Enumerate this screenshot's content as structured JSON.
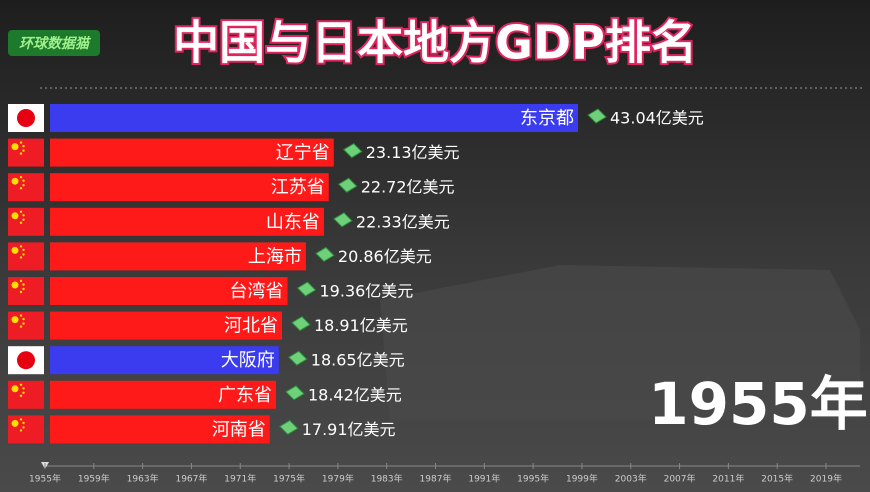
{
  "chart_data": {
    "type": "bar",
    "orientation": "horizontal",
    "title": "中国与日本地方GDP排名",
    "logo": "环球数据猫",
    "year_label": "1955年",
    "categories": [
      "东京都",
      "辽宁省",
      "江苏省",
      "山东省",
      "上海市",
      "台湾省",
      "河北省",
      "大阪府",
      "广东省",
      "河南省"
    ],
    "values": [
      43.04,
      23.13,
      22.72,
      22.33,
      20.86,
      19.36,
      18.91,
      18.65,
      18.42,
      17.91
    ],
    "value_labels": [
      "43.04亿美元",
      "23.13亿美元",
      "22.72亿美元",
      "22.33亿美元",
      "20.86亿美元",
      "19.36亿美元",
      "18.91亿美元",
      "18.65亿美元",
      "18.42亿美元",
      "17.91亿美元"
    ],
    "colors": [
      "#3b3bf0",
      "#ff1a1a",
      "#ff1a1a",
      "#ff1a1a",
      "#ff1a1a",
      "#ff1a1a",
      "#ff1a1a",
      "#3b3bf0",
      "#ff1a1a",
      "#ff1a1a"
    ],
    "timeline": [
      "1955年",
      "1959年",
      "1963年",
      "1967年",
      "1971年",
      "1975年",
      "1979年",
      "1983年",
      "1987年",
      "1991年",
      "1995年",
      "1999年",
      "2003年",
      "2007年",
      "2011年",
      "2015年",
      "2019年"
    ]
  }
}
